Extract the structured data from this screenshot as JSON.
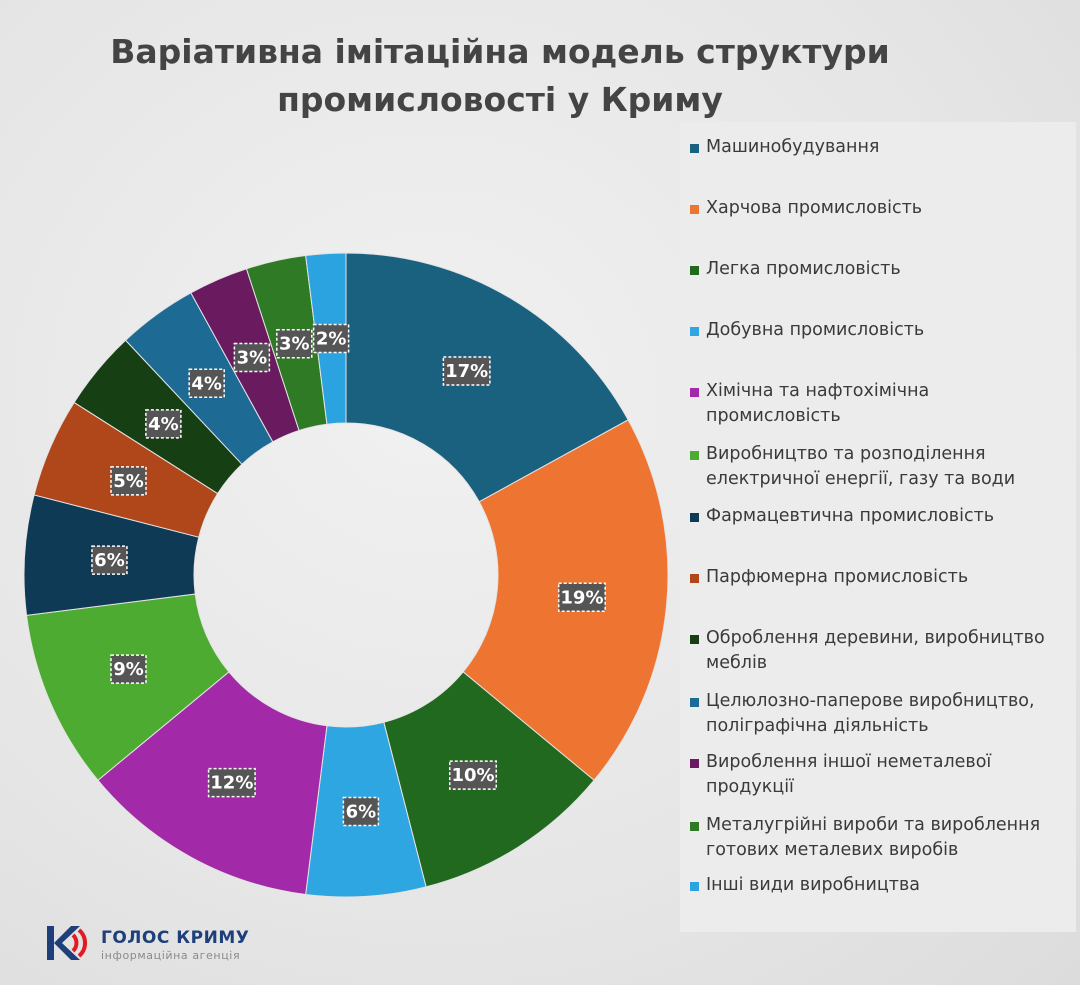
{
  "chart_data": {
    "type": "pie",
    "variant": "donut",
    "title_lines": [
      "Варіативна імітаційна модель структури",
      "промисловості у Криму"
    ],
    "legend_placement": "right",
    "slices": [
      {
        "label": "Машинобудування",
        "value": 17,
        "value_label": "17%",
        "color": "#1a607f"
      },
      {
        "label": "Харчова промисловість",
        "value": 19,
        "value_label": "19%",
        "color": "#ee7432"
      },
      {
        "label": "Легка промисловість",
        "value": 10,
        "value_label": "10%",
        "color": "#21691e"
      },
      {
        "label": "Добувна промисловість",
        "value": 6,
        "value_label": "6%",
        "color": "#2da6e2"
      },
      {
        "label": "Хімічна та нафтохімічна\nпромисловість",
        "value": 12,
        "value_label": "12%",
        "color": "#a229a7"
      },
      {
        "label": "Виробництво та розподілення\nелектричної енергії, газу та води",
        "value": 9,
        "value_label": "9%",
        "color": "#4dab31"
      },
      {
        "label": "Фармацевтична промисловість",
        "value": 6,
        "value_label": "6%",
        "color": "#0f3a55"
      },
      {
        "label": "Парфюмерна промисловість",
        "value": 5,
        "value_label": "5%",
        "color": "#b0471b"
      },
      {
        "label": "Оброблення деревини, виробництво\nмеблів",
        "value": 4,
        "value_label": "4%",
        "color": "#163f14"
      },
      {
        "label": "Целюлозно-паперове виробництво,\nполіграфічна діяльність",
        "value": 4,
        "value_label": "4%",
        "color": "#1d6a95"
      },
      {
        "label": "Вироблення іншої неметалевої\nпродукції",
        "value": 3,
        "value_label": "3%",
        "color": "#6a1a5e"
      },
      {
        "label": "Металугрійні вироби та вироблення\nготових металевих виробів",
        "value": 3,
        "value_label": "3%",
        "color": "#2f7a25"
      },
      {
        "label": "Інші види виробництва",
        "value": 2,
        "value_label": "2%",
        "color": "#2aa3e0"
      }
    ]
  },
  "logo": {
    "name": "ГОЛОС КРИМУ",
    "subtitle": "інформаційна агенція",
    "icon": "k-sound-wave-logo-icon",
    "colors": {
      "primary": "#1f3f7a",
      "accent": "#e21b23"
    }
  }
}
